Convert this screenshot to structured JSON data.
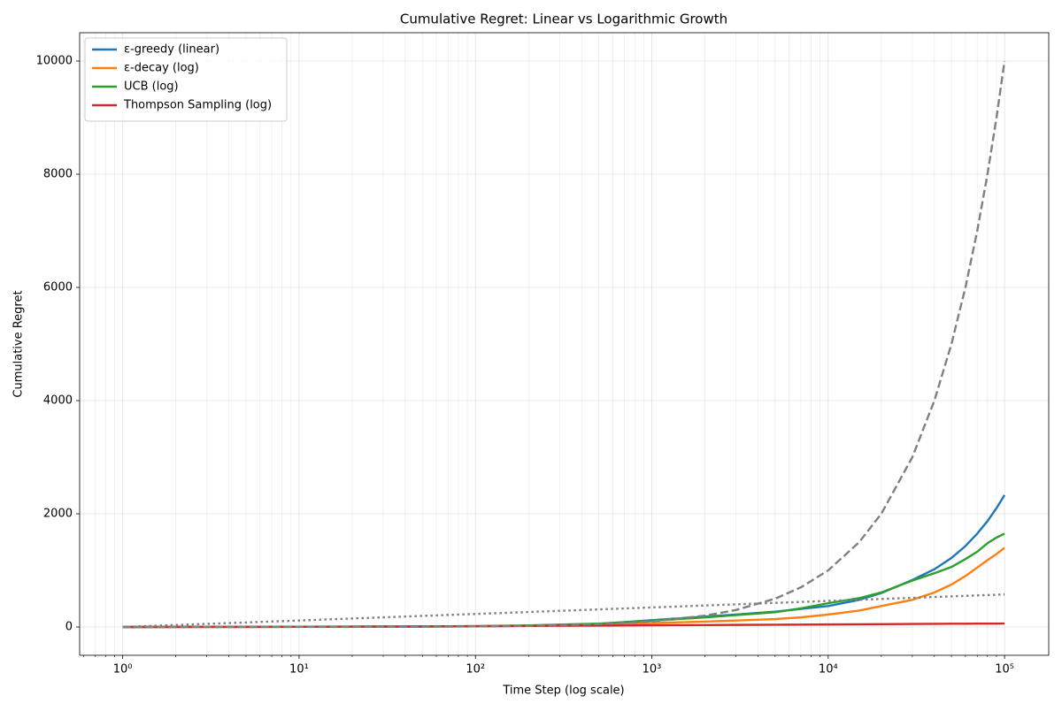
{
  "chart_data": {
    "type": "line",
    "title": "Cumulative Regret: Linear vs Logarithmic Growth",
    "xlabel": "Time Step (log scale)",
    "ylabel": "Cumulative Regret",
    "xscale": "log",
    "grid": true,
    "legend": "upper left",
    "x": [
      1,
      2,
      5,
      10,
      20,
      50,
      100,
      200,
      500,
      1000,
      2000,
      3000,
      5000,
      7000,
      10000,
      15000,
      20000,
      30000,
      40000,
      50000,
      60000,
      70000,
      80000,
      90000,
      100000
    ],
    "series": [
      {
        "name": "ε-greedy (linear)",
        "color": "#1f77b4",
        "values": [
          0,
          1,
          2,
          3,
          5,
          8,
          12,
          22,
          55,
          120,
          185,
          220,
          270,
          320,
          370,
          480,
          600,
          830,
          1020,
          1220,
          1430,
          1650,
          1870,
          2100,
          2330
        ]
      },
      {
        "name": "ε-decay (log)",
        "color": "#ff7f0e",
        "values": [
          0,
          1,
          2,
          3,
          5,
          7,
          10,
          18,
          40,
          70,
          95,
          115,
          140,
          170,
          220,
          290,
          370,
          480,
          610,
          750,
          900,
          1050,
          1180,
          1290,
          1400
        ]
      },
      {
        "name": "UCB (log)",
        "color": "#2ca02c",
        "values": [
          0,
          1,
          2,
          3,
          5,
          8,
          15,
          28,
          60,
          110,
          170,
          210,
          260,
          330,
          420,
          510,
          610,
          820,
          950,
          1060,
          1200,
          1330,
          1480,
          1580,
          1650
        ]
      },
      {
        "name": "Thompson Sampling (log)",
        "color": "#d62728",
        "values": [
          0,
          2,
          3,
          5,
          8,
          11,
          15,
          19,
          25,
          30,
          34,
          37,
          40,
          42,
          45,
          48,
          50,
          53,
          55,
          57,
          58,
          59,
          60,
          60,
          61
        ]
      },
      {
        "color": "#808080",
        "dash": "dashed",
        "values": [
          0.1,
          0.2,
          0.5,
          1,
          2,
          5,
          10,
          20,
          50,
          100,
          200,
          300,
          500,
          700,
          1000,
          1500,
          2000,
          3000,
          4000,
          5000,
          6000,
          7000,
          8000,
          9000,
          10000
        ]
      },
      {
        "color": "#808080",
        "dash": "dotted",
        "values": [
          0,
          35,
          80,
          115,
          150,
          196,
          230,
          265,
          311,
          345,
          380,
          400,
          426,
          443,
          461,
          481,
          495,
          515,
          530,
          541,
          550,
          558,
          564,
          570,
          576
        ]
      }
    ],
    "xlim": [
      0.57,
      178000
    ],
    "ylim": [
      -500,
      10500
    ],
    "xticks": [
      {
        "value": 1,
        "label": "10⁰"
      },
      {
        "value": 10,
        "label": "10¹"
      },
      {
        "value": 100,
        "label": "10²"
      },
      {
        "value": 1000,
        "label": "10³"
      },
      {
        "value": 10000,
        "label": "10⁴"
      },
      {
        "value": 100000,
        "label": "10⁵"
      }
    ],
    "xminorticks": [
      0.6,
      0.7,
      0.8,
      0.9,
      2,
      3,
      4,
      5,
      6,
      7,
      8,
      9,
      20,
      30,
      40,
      50,
      60,
      70,
      80,
      90,
      200,
      300,
      400,
      500,
      600,
      700,
      800,
      900,
      2000,
      3000,
      4000,
      5000,
      6000,
      7000,
      8000,
      9000,
      20000,
      30000,
      40000,
      50000,
      60000,
      70000,
      80000,
      90000
    ],
    "yticks": [
      0,
      2000,
      4000,
      6000,
      8000,
      10000
    ]
  }
}
